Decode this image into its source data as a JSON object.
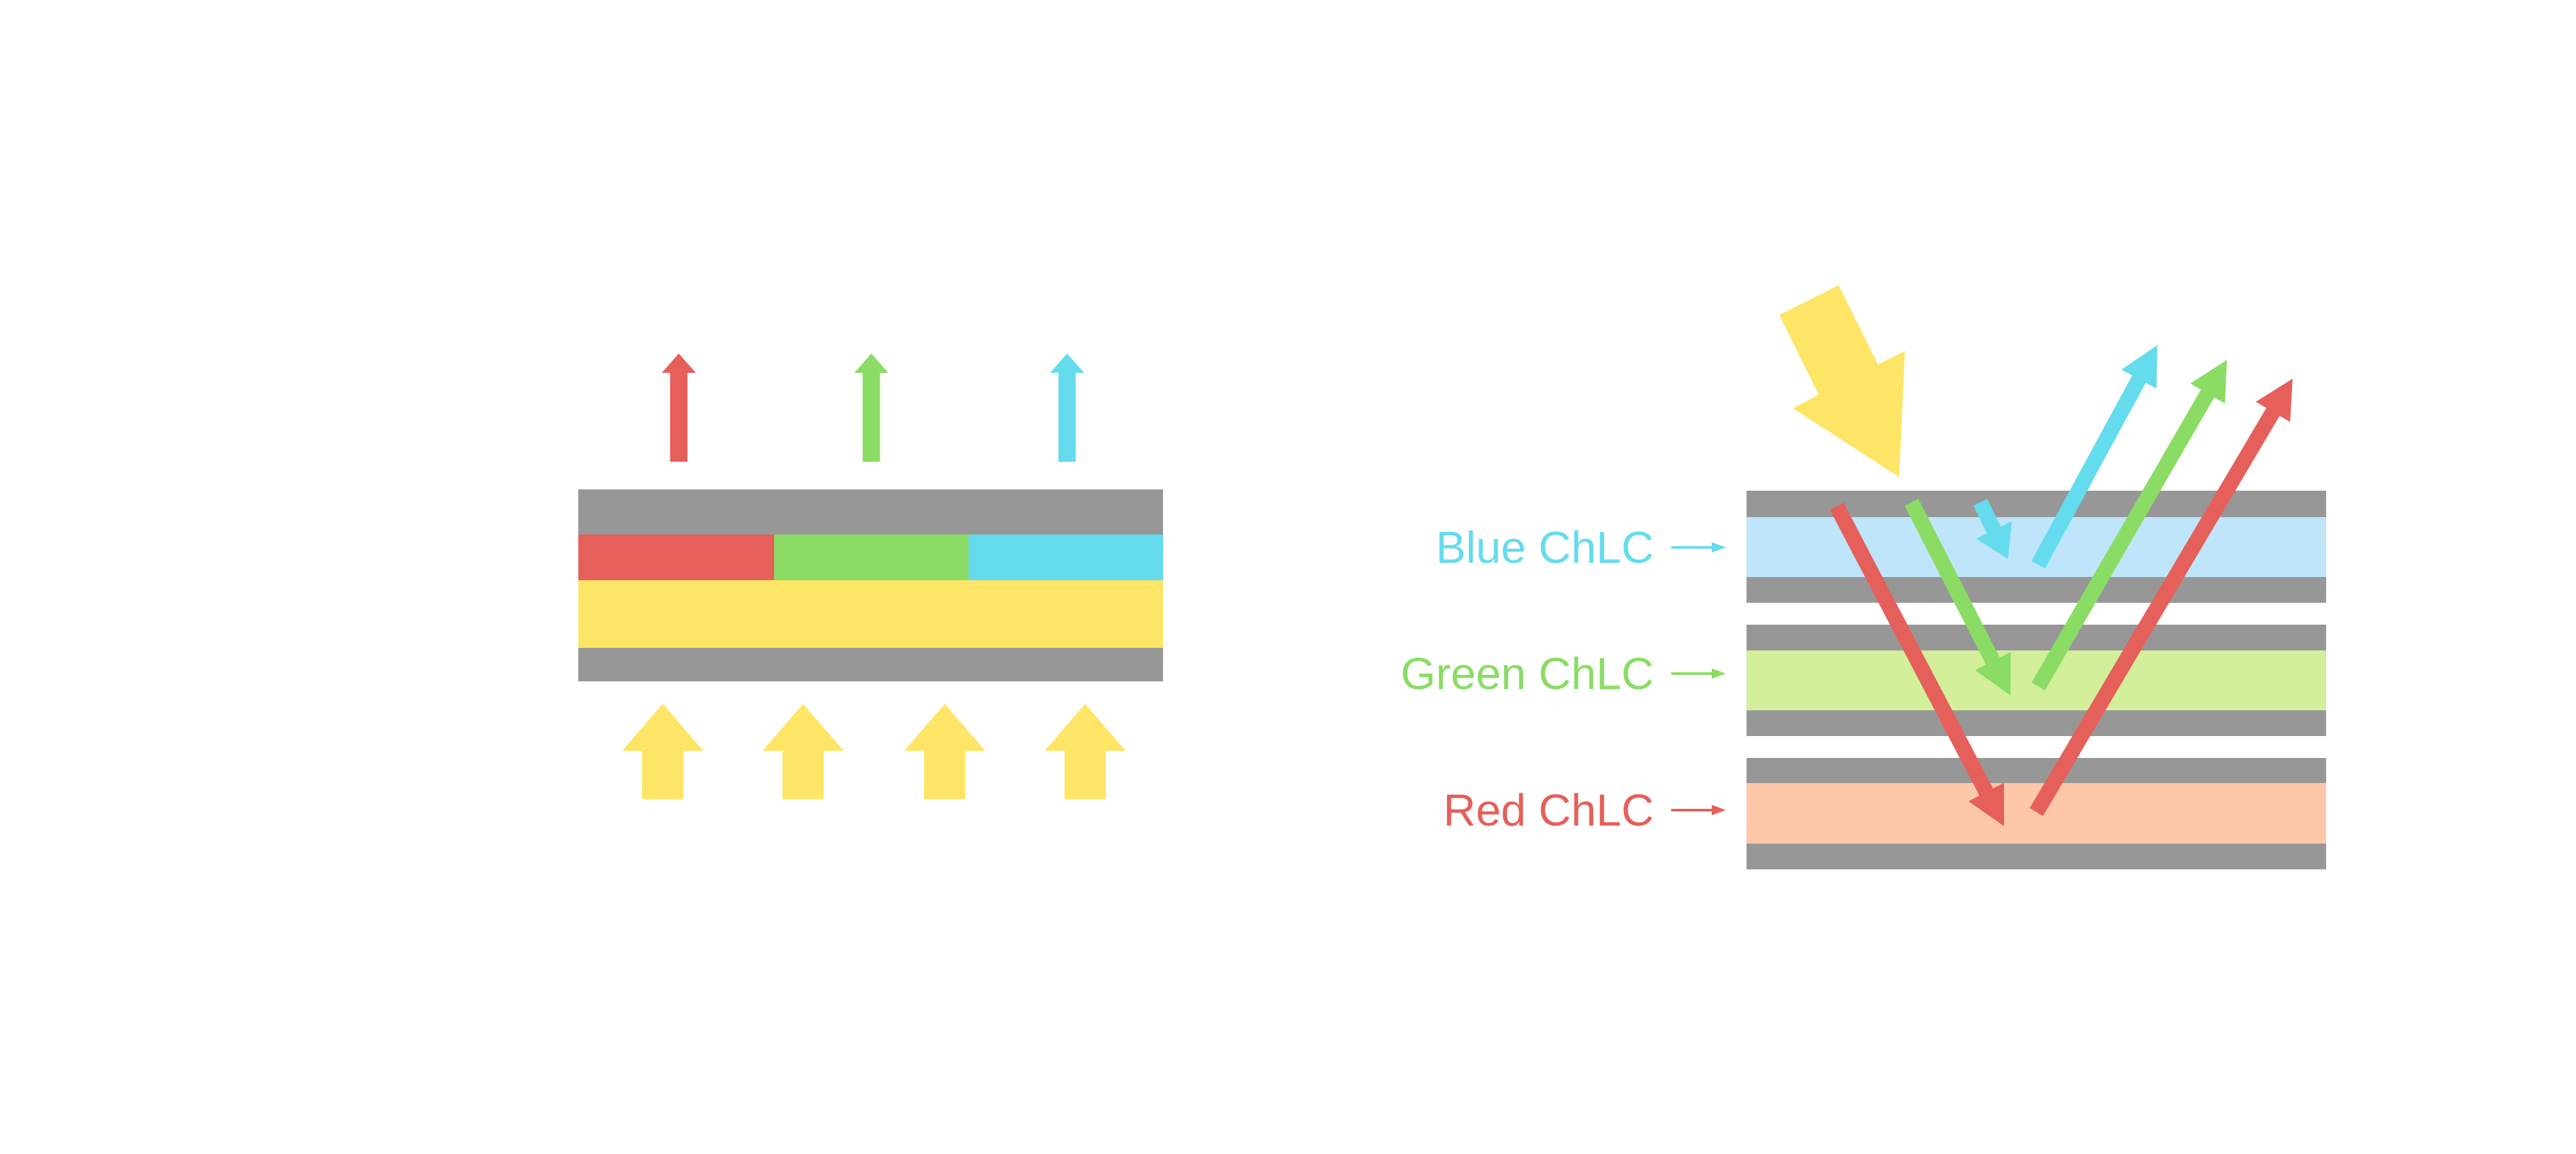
{
  "colors": {
    "red": "#E5605A",
    "green": "#8ADC64",
    "blue": "#64DCEE",
    "yellow": "#FFE566",
    "substrate_gray": "#979797",
    "blue_layer": "#BFE5FB",
    "green_layer": "#D3EF9A",
    "red_layer": "#FDC8A9"
  },
  "right_panel": {
    "labels": {
      "blue": "Blue ChLC",
      "green": "Green ChLC",
      "red": "Red ChLC"
    }
  }
}
